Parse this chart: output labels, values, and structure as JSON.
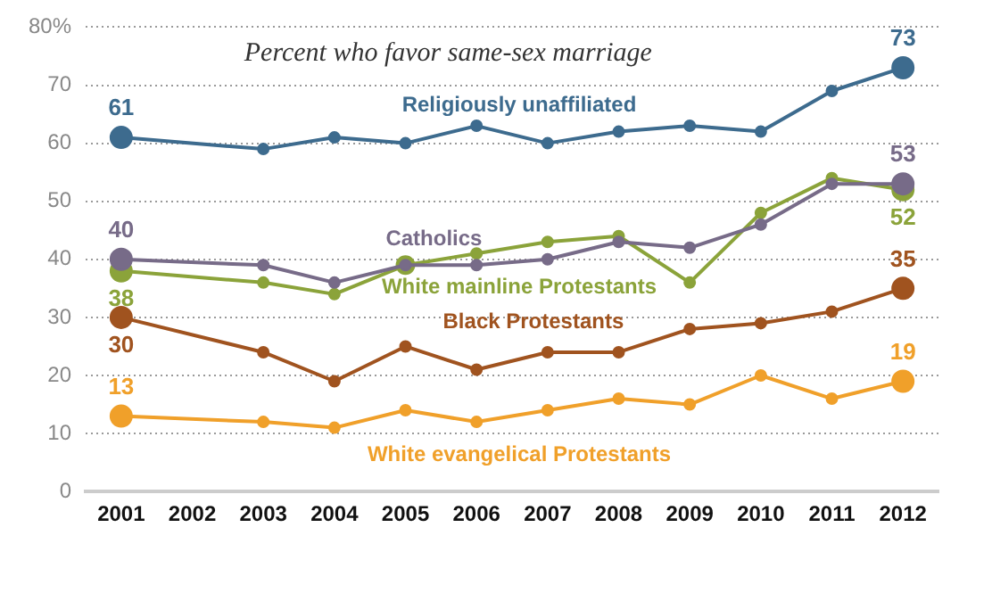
{
  "chart_data": {
    "type": "line",
    "title": "Percent who favor same-sex marriage",
    "categories": [
      "2001",
      "2002",
      "2003",
      "2004",
      "2005",
      "2006",
      "2007",
      "2008",
      "2009",
      "2010",
      "2011",
      "2012"
    ],
    "series": [
      {
        "name": "Religiously unaffiliated",
        "color": "#3d6b8e",
        "values": [
          61,
          null,
          59,
          61,
          60,
          63,
          60,
          62,
          63,
          62,
          69,
          73
        ],
        "value_labels": [
          "61",
          null,
          null,
          null,
          null,
          null,
          null,
          null,
          null,
          null,
          null,
          "73"
        ]
      },
      {
        "name": "Catholics",
        "color": "#776b88",
        "values": [
          40,
          null,
          39,
          36,
          39,
          39,
          40,
          43,
          42,
          46,
          53,
          53
        ],
        "value_labels": [
          "40",
          null,
          null,
          null,
          null,
          null,
          null,
          null,
          null,
          null,
          null,
          "53"
        ]
      },
      {
        "name": "White mainline Protestants",
        "color": "#8ba33a",
        "values": [
          38,
          null,
          36,
          34,
          39,
          41,
          43,
          44,
          36,
          48,
          54,
          52
        ],
        "value_labels": [
          "38",
          null,
          null,
          null,
          null,
          null,
          null,
          null,
          null,
          null,
          null,
          "52"
        ]
      },
      {
        "name": "Black Protestants",
        "color": "#a0531f",
        "values": [
          30,
          null,
          24,
          19,
          25,
          21,
          24,
          24,
          28,
          29,
          31,
          35
        ],
        "value_labels": [
          "30",
          null,
          null,
          null,
          null,
          null,
          null,
          null,
          null,
          null,
          null,
          "35"
        ]
      },
      {
        "name": "White evangelical Protestants",
        "color": "#f0a02a",
        "values": [
          13,
          null,
          12,
          11,
          14,
          12,
          14,
          16,
          15,
          20,
          16,
          19
        ],
        "value_labels": [
          "13",
          null,
          null,
          null,
          null,
          null,
          null,
          null,
          null,
          null,
          null,
          "19"
        ]
      }
    ],
    "ylim": [
      0,
      80
    ],
    "yticks": [
      0,
      10,
      20,
      30,
      40,
      50,
      60,
      70,
      {
        "value": 80,
        "label": "80%"
      }
    ],
    "grid": "y",
    "legend": false,
    "marker": "circle",
    "line_style": "solid"
  }
}
